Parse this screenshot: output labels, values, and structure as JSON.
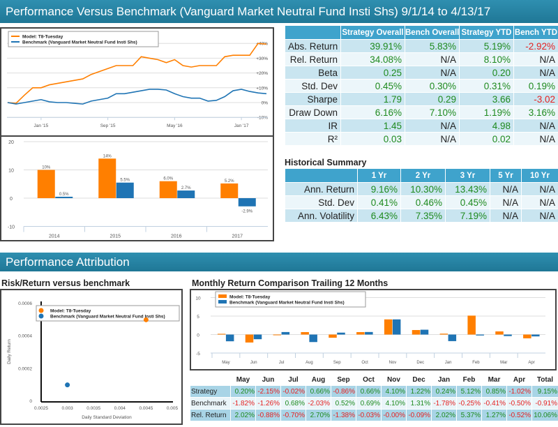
{
  "header": {
    "title": "Performance Versus Benchmark (Vanguard Market Neutral Fund Insti Shs) 9/1/14 to 4/13/17"
  },
  "section2": {
    "title": "Performance Attribution"
  },
  "colors": {
    "model": "#ff7f00",
    "benchmark": "#1f74b4",
    "positive": "#1e8a1e",
    "negative": "#e52222",
    "header": "#2a86a6"
  },
  "legend": {
    "model": "Model: T8-Tuesday",
    "benchmark": "Benchmark (Vanguard Market Neutral Fund Insti Shs)"
  },
  "stats_table": {
    "columns": [
      "",
      "Strategy Overall",
      "Bench Overall",
      "Strategy YTD",
      "Bench YTD"
    ],
    "rows": [
      [
        "Abs. Return",
        "39.91%",
        "5.83%",
        "5.19%",
        "-2.92%"
      ],
      [
        "Rel. Return",
        "34.08%",
        "N/A",
        "8.10%",
        "N/A"
      ],
      [
        "Beta",
        "0.25",
        "N/A",
        "0.20",
        "N/A"
      ],
      [
        "Std. Dev",
        "0.45%",
        "0.30%",
        "0.31%",
        "0.19%"
      ],
      [
        "Sharpe",
        "1.79",
        "0.29",
        "3.66",
        "-3.02"
      ],
      [
        "Draw Down",
        "6.16%",
        "7.10%",
        "1.19%",
        "3.16%"
      ],
      [
        "IR",
        "1.45",
        "N/A",
        "4.98",
        "N/A"
      ],
      [
        "R²",
        "0.03",
        "N/A",
        "0.02",
        "N/A"
      ]
    ]
  },
  "historical": {
    "title": "Historical Summary",
    "columns": [
      "",
      "1 Yr",
      "2 Yr",
      "3 Yr",
      "5 Yr",
      "10 Yr"
    ],
    "rows": [
      [
        "Ann. Return",
        "9.16%",
        "10.30%",
        "13.43%",
        "N/A",
        "N/A"
      ],
      [
        "Std. Dev",
        "0.41%",
        "0.46%",
        "0.45%",
        "N/A",
        "N/A"
      ],
      [
        "Ann. Volatility",
        "6.43%",
        "7.35%",
        "7.19%",
        "N/A",
        "N/A"
      ]
    ]
  },
  "risk_title": "Risk/Return versus benchmark",
  "monthly_title": "Monthly Return Comparison Trailing 12 Months",
  "monthly_table": {
    "columns": [
      "",
      "May",
      "Jun",
      "Jul",
      "Aug",
      "Sep",
      "Oct",
      "Nov",
      "Dec",
      "Jan",
      "Feb",
      "Mar",
      "Apr",
      "Total"
    ],
    "rows": [
      [
        "Strategy",
        "0.20%",
        "-2.15%",
        "-0.02%",
        "0.66%",
        "-0.86%",
        "0.66%",
        "4.10%",
        "1.22%",
        "0.24%",
        "5.12%",
        "0.85%",
        "-1.02%",
        "9.15%"
      ],
      [
        "Benchmark",
        "-1.82%",
        "-1.26%",
        "0.68%",
        "-2.03%",
        "0.52%",
        "0.69%",
        "4.10%",
        "1.31%",
        "-1.78%",
        "-0.25%",
        "-0.41%",
        "-0.50%",
        "-0.91%"
      ],
      [
        "Rel. Return",
        "2.02%",
        "-0.88%",
        "-0.70%",
        "2.70%",
        "-1.38%",
        "-0.03%",
        "-0.00%",
        "-0.09%",
        "2.02%",
        "5.37%",
        "1.27%",
        "-0.52%",
        "10.06%"
      ]
    ]
  },
  "chart_data": [
    {
      "type": "line",
      "xlim": [
        "2014-09",
        "2017-04"
      ],
      "ylim": [
        -10,
        45
      ],
      "yticks": [
        "-10%",
        "0%",
        "+10%",
        "+20%",
        "+30%",
        "+40%"
      ],
      "ytick_values": [
        -10,
        0,
        10,
        20,
        30,
        40
      ],
      "xticks": [
        "Jan '15",
        "Sep '15",
        "May '16",
        "Jan '17"
      ],
      "xtick_values": [
        "2015-01",
        "2015-09",
        "2016-05",
        "2017-01"
      ],
      "legend_position": "top-left",
      "grid": true,
      "x": [
        "2014-09",
        "2014-10",
        "2014-11",
        "2014-12",
        "2015-01",
        "2015-02",
        "2015-03",
        "2015-04",
        "2015-05",
        "2015-06",
        "2015-07",
        "2015-08",
        "2015-09",
        "2015-10",
        "2015-11",
        "2015-12",
        "2016-01",
        "2016-02",
        "2016-03",
        "2016-04",
        "2016-05",
        "2016-06",
        "2016-07",
        "2016-08",
        "2016-09",
        "2016-10",
        "2016-11",
        "2016-12",
        "2017-01",
        "2017-02",
        "2017-03",
        "2017-04"
      ],
      "series": [
        {
          "name": "Model: T8-Tuesday",
          "values": [
            0,
            -0.5,
            5,
            10,
            10,
            12,
            13,
            14,
            15,
            16,
            19,
            21,
            23,
            25,
            25,
            25,
            31,
            30,
            29,
            27,
            29,
            25,
            24,
            25,
            25,
            25,
            31,
            32,
            32,
            32,
            40,
            39.5
          ]
        },
        {
          "name": "Benchmark (Vanguard Market Neutral Fund Insti Shs)",
          "values": [
            0,
            -1,
            0,
            1,
            2,
            0.5,
            0,
            0,
            -0.5,
            -1,
            1,
            2,
            3,
            6,
            6,
            7,
            8,
            9,
            9,
            8.5,
            6,
            4,
            3,
            3,
            1,
            1.5,
            4,
            8,
            9,
            7.5,
            6.5,
            6
          ]
        }
      ]
    },
    {
      "type": "bar",
      "categories": [
        "2014",
        "2015",
        "2016",
        "2017"
      ],
      "ylim": [
        -10,
        20
      ],
      "yticks": [
        -10,
        0,
        10,
        20
      ],
      "grid": true,
      "series": [
        {
          "values": [
            10,
            14,
            6.0,
            5.2
          ],
          "labels": [
            "10%",
            "14%",
            "6.0%",
            "5.2%"
          ]
        },
        {
          "values": [
            0.5,
            5.5,
            2.7,
            -2.9
          ],
          "labels": [
            "0.5%",
            "5.5%",
            "2.7%",
            "-2.9%"
          ]
        }
      ]
    },
    {
      "type": "scatter",
      "xlabel": "Daily Standard Deviation",
      "ylabel": "Daily Return",
      "xlim": [
        0.0025,
        0.005
      ],
      "ylim": [
        0,
        0.0006
      ],
      "xticks": [
        "0.0025",
        "0.003",
        "0.0035",
        "0.004",
        "0.0045",
        "0.005"
      ],
      "yticks": [
        "0",
        "0.0002",
        "0.0004",
        "0.0006"
      ],
      "legend_position": "top-left",
      "series": [
        {
          "name": "Model: T8-Tuesday",
          "x": 0.0045,
          "y": 0.0005
        },
        {
          "name": "Benchmark (Vanguard Market Neutral Fund Insti Shs)",
          "x": 0.003,
          "y": 0.0001
        }
      ]
    },
    {
      "type": "bar",
      "categories": [
        "May",
        "Jun",
        "Jul",
        "Aug",
        "Sep",
        "Oct",
        "Nov",
        "Dec",
        "Jan",
        "Feb",
        "Mar",
        "Apr"
      ],
      "ylim": [
        -5,
        10
      ],
      "yticks": [
        -5,
        0,
        5,
        10
      ],
      "grid": true,
      "legend_position": "top-left",
      "series": [
        {
          "name": "Model: T8-Tuesday",
          "values": [
            0.2,
            -2.15,
            -0.02,
            0.66,
            -0.86,
            0.66,
            4.1,
            1.22,
            0.24,
            5.12,
            0.85,
            -1.02
          ]
        },
        {
          "name": "Benchmark (Vanguard Market Neutral Fund Insti Shs)",
          "values": [
            -1.82,
            -1.26,
            0.68,
            -2.03,
            0.52,
            0.69,
            4.1,
            1.31,
            -1.78,
            -0.25,
            -0.41,
            -0.5
          ]
        }
      ]
    }
  ]
}
